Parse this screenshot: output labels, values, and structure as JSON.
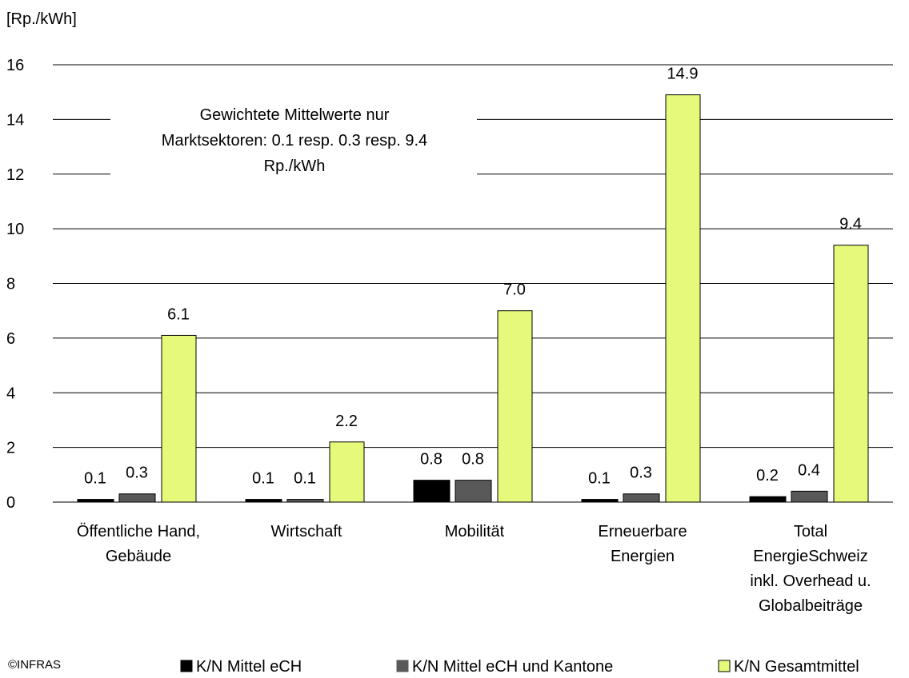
{
  "chart_data": {
    "type": "bar",
    "ylabel": "[Rp./kWh]",
    "ylim": [
      0,
      16
    ],
    "yticks": [
      "0",
      "2",
      "4",
      "6",
      "8",
      "10",
      "12",
      "14",
      "16"
    ],
    "grid": true,
    "categories": [
      [
        "Öffentliche Hand,",
        "Gebäude"
      ],
      [
        "Wirtschaft"
      ],
      [
        "Mobilität"
      ],
      [
        "Erneuerbare",
        "Energien"
      ],
      [
        "Total",
        "EnergieSchweiz",
        "inkl. Overhead u.",
        "Globalbeiträge"
      ]
    ],
    "series": [
      {
        "name": "K/N Mittel eCH",
        "color": "#000000",
        "values": [
          0.1,
          0.1,
          0.8,
          0.1,
          0.2
        ],
        "labels": [
          "0.1",
          "0.1",
          "0.8",
          "0.1",
          "0.2"
        ]
      },
      {
        "name": "K/N Mittel eCH und Kantone",
        "color": "#595959",
        "values": [
          0.3,
          0.1,
          0.8,
          0.3,
          0.4
        ],
        "labels": [
          "0.3",
          "0.1",
          "0.8",
          "0.3",
          "0.4"
        ]
      },
      {
        "name": "K/N Gesamtmittel",
        "color": "#e6f97a",
        "values": [
          6.1,
          2.2,
          7.0,
          14.9,
          9.4
        ],
        "labels": [
          "6.1",
          "2.2",
          "7.0",
          "14.9",
          "9.4"
        ]
      }
    ],
    "annotation": [
      "Gewichtete Mittelwerte nur",
      "Marktsektoren: 0.1   resp. 0.3   resp. 9.4",
      "Rp./kWh"
    ],
    "legend_position": "bottom"
  },
  "copyright": "©INFRAS"
}
